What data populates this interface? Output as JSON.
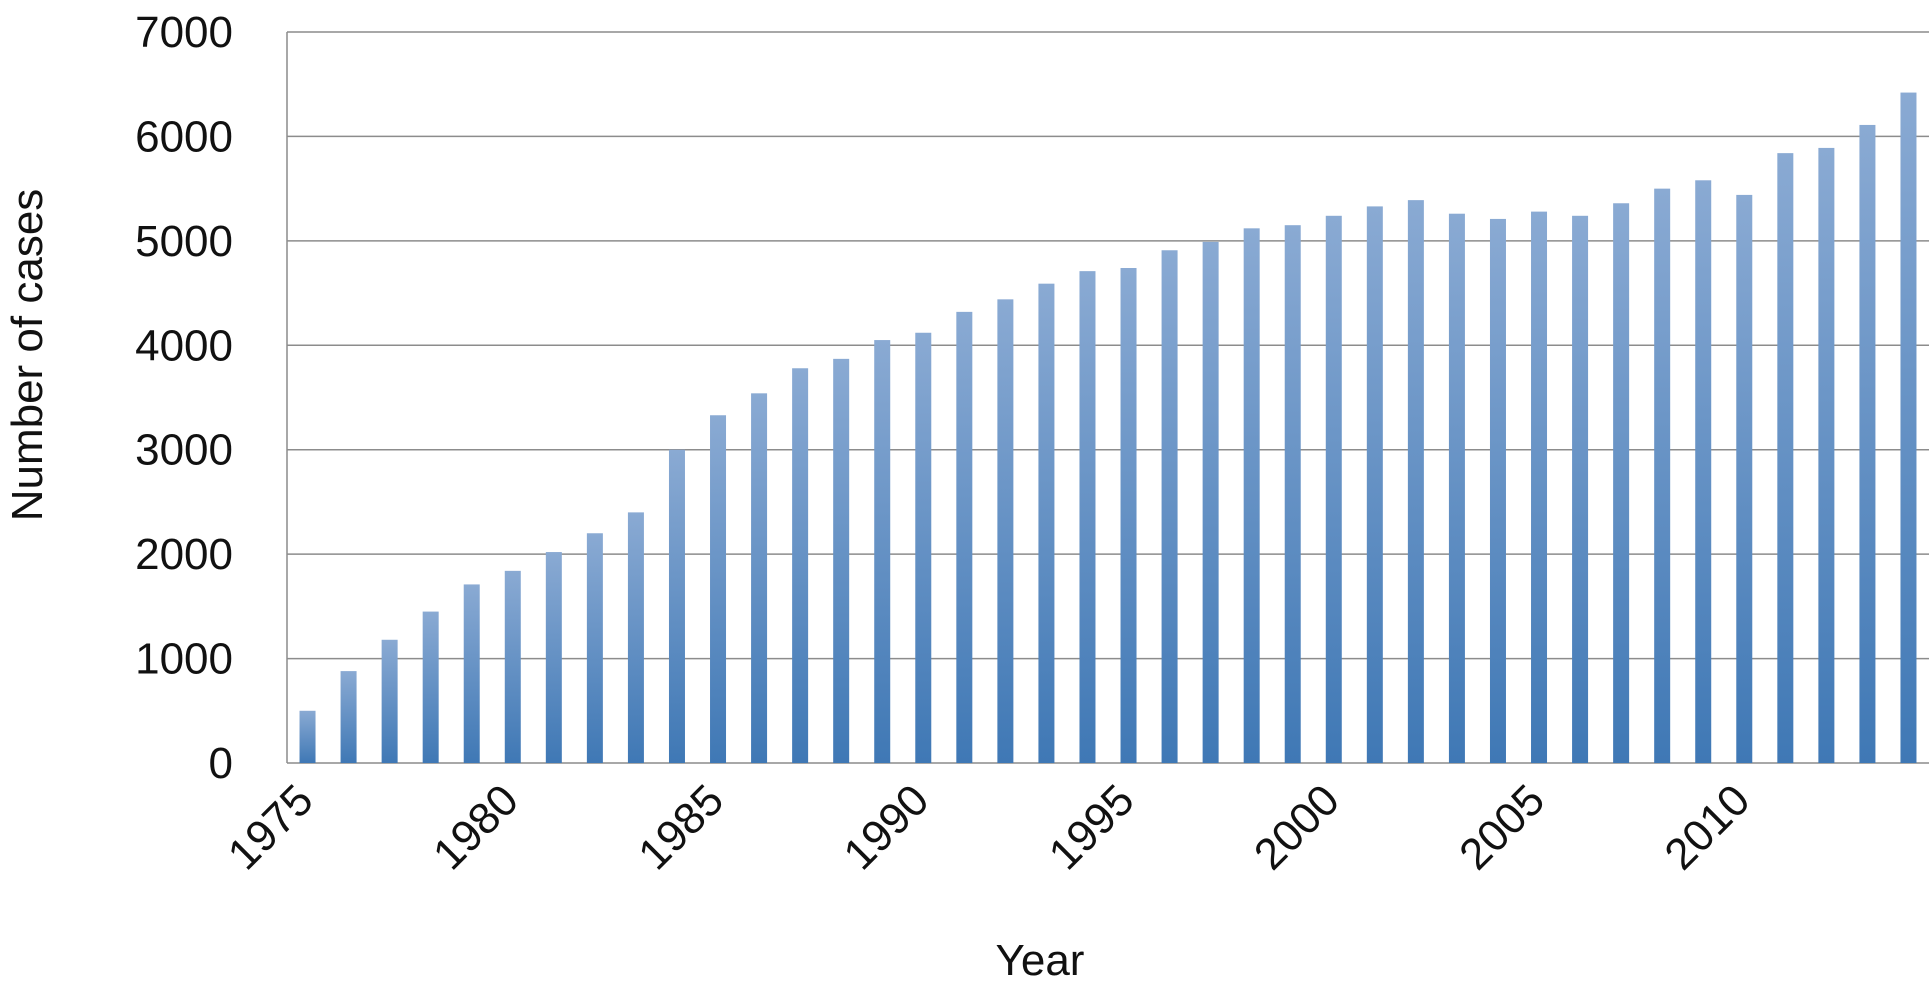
{
  "chart_data": {
    "type": "bar",
    "title": "",
    "xlabel": "Year",
    "ylabel": "Number of cases",
    "ylim": [
      0,
      7000
    ],
    "yticks": [
      0,
      1000,
      2000,
      3000,
      4000,
      5000,
      6000,
      7000
    ],
    "xtick_labels": [
      "1975",
      "1980",
      "1985",
      "1990",
      "1995",
      "2000",
      "2005",
      "2010"
    ],
    "grid": true,
    "legend": "none",
    "bar_color_top": "#8aaad3",
    "bar_color_bottom": "#3f78b5",
    "grid_color": "#8c8c8c",
    "categories": [
      "1975",
      "1976",
      "1977",
      "1978",
      "1979",
      "1980",
      "1981",
      "1982",
      "1983",
      "1984",
      "1985",
      "1986",
      "1987",
      "1988",
      "1989",
      "1990",
      "1991",
      "1992",
      "1993",
      "1994",
      "1995",
      "1996",
      "1997",
      "1998",
      "1999",
      "2000",
      "2001",
      "2002",
      "2003",
      "2004",
      "2005",
      "2006",
      "2007",
      "2008",
      "2009",
      "2010",
      "2011",
      "2012",
      "2013",
      "2014"
    ],
    "values": [
      500,
      880,
      1180,
      1450,
      1710,
      1840,
      2020,
      2200,
      2400,
      3000,
      3330,
      3540,
      3780,
      3870,
      4050,
      4120,
      4320,
      4440,
      4590,
      4710,
      4740,
      4910,
      4990,
      5120,
      5150,
      5240,
      5330,
      5390,
      5260,
      5210,
      5280,
      5240,
      5360,
      5500,
      5580,
      5440,
      5840,
      5890,
      6110,
      6420
    ]
  }
}
